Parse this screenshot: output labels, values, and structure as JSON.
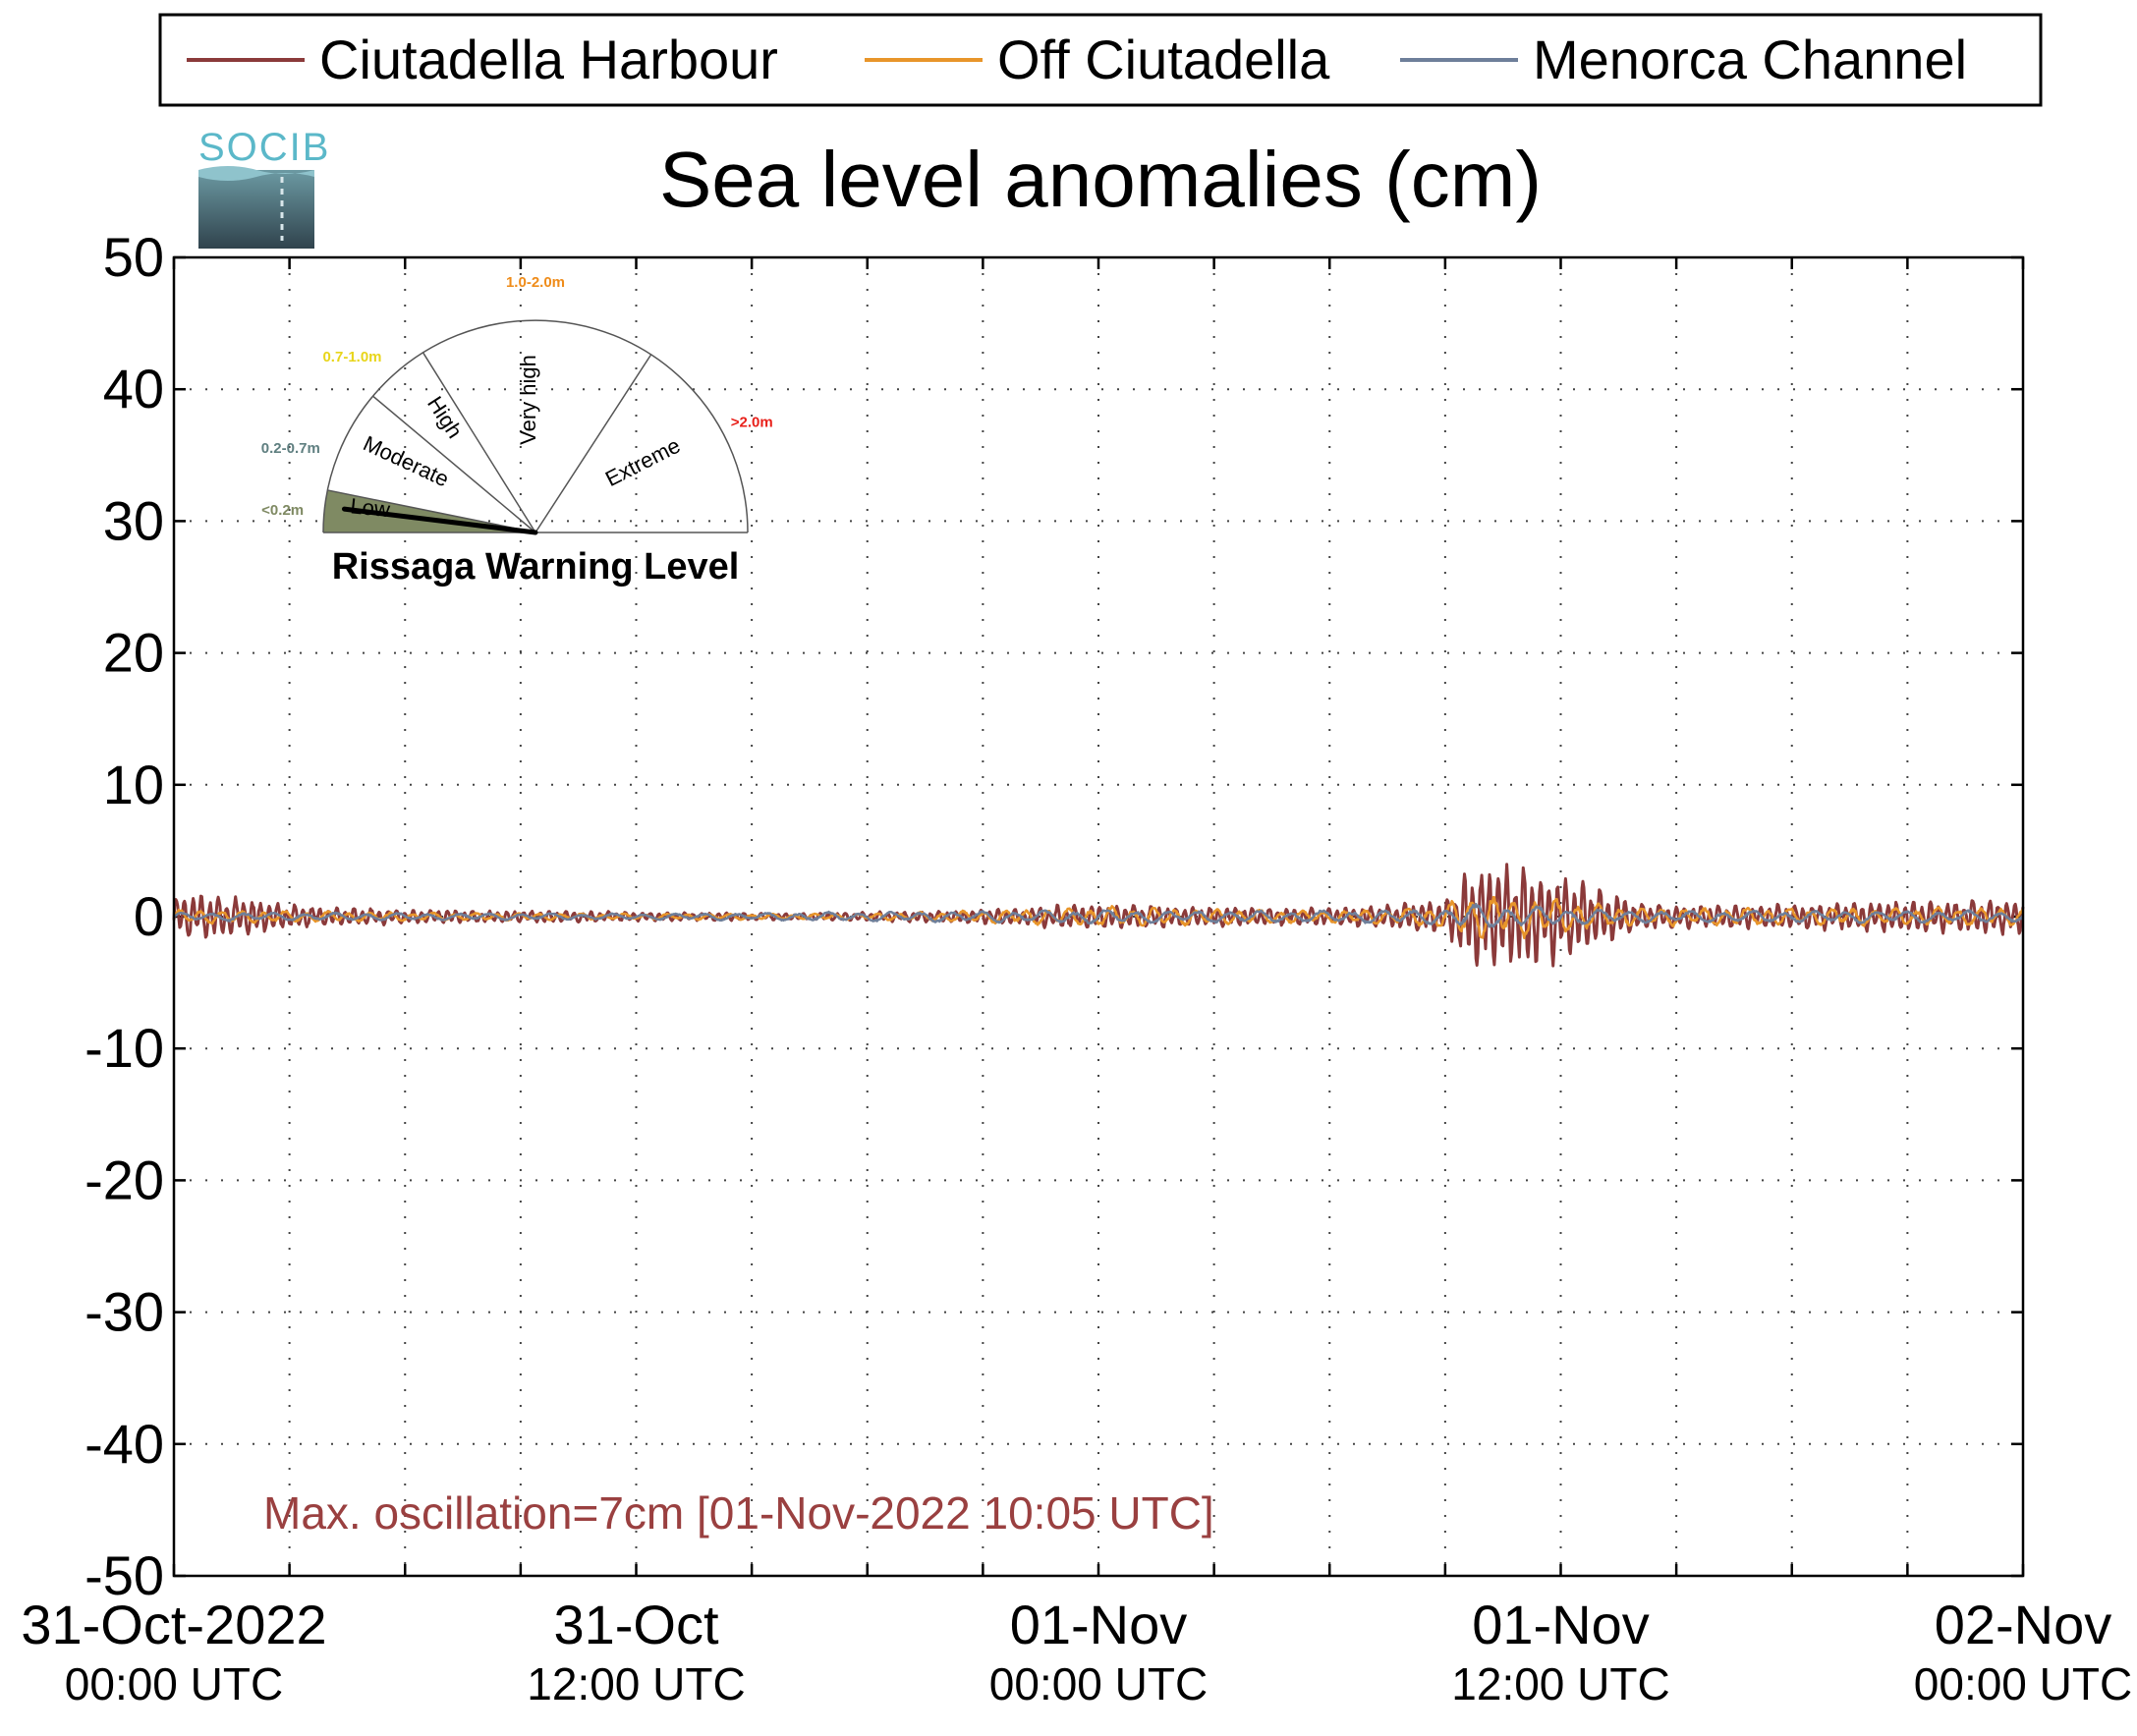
{
  "legend": [
    {
      "label": "Ciutadella Harbour",
      "color": "#8b3a3a"
    },
    {
      "label": "Off Ciutadella",
      "color": "#e8952a"
    },
    {
      "label": "Menorca Channel",
      "color": "#6e7f9a"
    }
  ],
  "logo_text": "SOCIB",
  "gauge": {
    "title": "Rissaga Warning Level",
    "needle_level": "Low",
    "sectors": [
      {
        "label": "Low",
        "range": "<0.2m",
        "range_color": "#7f8a63",
        "fill": "#7f8a63"
      },
      {
        "label": "Moderate",
        "range": "0.2-0.7m",
        "range_color": "#5f7f80",
        "fill": "none"
      },
      {
        "label": "High",
        "range": "0.7-1.0m",
        "range_color": "#e8d51a",
        "fill": "none"
      },
      {
        "label": "Very high",
        "range": "1.0-2.0m",
        "range_color": "#ef8c1a",
        "fill": "none"
      },
      {
        "label": "Extreme",
        "range": ">2.0m",
        "range_color": "#e8201a",
        "fill": "none"
      }
    ]
  },
  "annotation": {
    "text": "Max. oscillation=7cm [01-Nov-2022 10:05 UTC]",
    "color": "#9a4040"
  },
  "chart_data": {
    "type": "line",
    "title": "Sea level anomalies (cm)",
    "xlabel": "",
    "ylabel": "",
    "ylim": [
      -50,
      50
    ],
    "yticks": [
      50,
      40,
      30,
      20,
      10,
      0,
      -10,
      -20,
      -30,
      -40,
      -50
    ],
    "xlim_hours": [
      0,
      48
    ],
    "xticks": [
      {
        "hour": 0,
        "date": "31-Oct-2022",
        "time": "00:00 UTC"
      },
      {
        "hour": 12,
        "date": "31-Oct",
        "time": "12:00 UTC"
      },
      {
        "hour": 24,
        "date": "01-Nov",
        "time": "00:00 UTC"
      },
      {
        "hour": 36,
        "date": "01-Nov",
        "time": "12:00 UTC"
      },
      {
        "hour": 48,
        "date": "02-Nov",
        "time": "00:00 UTC"
      }
    ],
    "minor_ticks_hours": [
      3,
      6,
      9,
      15,
      18,
      21,
      27,
      30,
      33,
      39,
      42,
      45
    ],
    "grid": true,
    "legend_position": "top",
    "series": [
      {
        "name": "Ciutadella Harbour",
        "color": "#8b3a3a",
        "envelope_hours": [
          0,
          1,
          2,
          3,
          4,
          5,
          6,
          8,
          10,
          12,
          14,
          16,
          18,
          20,
          22,
          23,
          24,
          25,
          26,
          28,
          30,
          31,
          32,
          33,
          33.5,
          34,
          35,
          36,
          37,
          38,
          39,
          40,
          42,
          44,
          46,
          48
        ],
        "envelope_cm": [
          1.5,
          1.5,
          1.2,
          0.8,
          0.6,
          0.6,
          0.5,
          0.4,
          0.4,
          0.3,
          0.3,
          0.2,
          0.3,
          0.4,
          0.6,
          0.8,
          0.8,
          0.8,
          0.7,
          0.6,
          0.6,
          0.7,
          0.9,
          1.2,
          3.0,
          3.5,
          3.5,
          3.0,
          2.0,
          1.0,
          0.8,
          0.8,
          0.8,
          1.0,
          1.1,
          1.2
        ]
      },
      {
        "name": "Off Ciutadella",
        "color": "#e8952a",
        "envelope_hours": [
          0,
          6,
          12,
          18,
          22,
          24,
          26,
          30,
          32,
          33,
          33.5,
          34,
          36,
          38,
          40,
          44,
          48
        ],
        "envelope_cm": [
          0.5,
          0.3,
          0.2,
          0.2,
          0.5,
          0.7,
          0.6,
          0.4,
          0.6,
          0.8,
          1.5,
          1.5,
          1.2,
          0.6,
          0.6,
          0.6,
          0.6
        ]
      },
      {
        "name": "Menorca Channel",
        "color": "#6e7f9a",
        "envelope_hours": [
          0,
          12,
          22,
          24,
          26,
          30,
          32,
          33,
          33.5,
          34,
          36,
          38,
          40,
          48
        ],
        "envelope_cm": [
          0.3,
          0.2,
          0.4,
          0.5,
          0.4,
          0.4,
          0.5,
          0.5,
          0.9,
          0.8,
          0.6,
          0.4,
          0.4,
          0.4
        ]
      }
    ]
  }
}
